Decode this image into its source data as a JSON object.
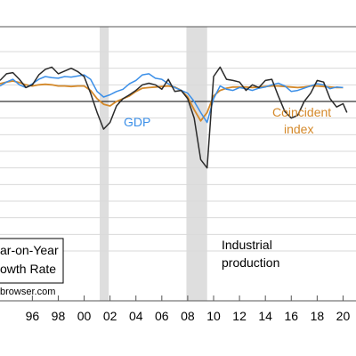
{
  "chart_data": {
    "type": "line",
    "xlim": [
      1993.5,
      2021.0
    ],
    "ylim": [
      -0.36,
      0.135
    ],
    "x_ticks": [
      1996,
      1998,
      2000,
      2002,
      2004,
      2006,
      2008,
      2010,
      2012,
      2014,
      2016,
      2018,
      2020
    ],
    "x_tick_labels": [
      "96",
      "98",
      "00",
      "02",
      "04",
      "06",
      "08",
      "10",
      "12",
      "14",
      "16",
      "18",
      "20"
    ],
    "y_grid_values": [
      0.09,
      0.06,
      0.03,
      0.0,
      -0.03,
      -0.06,
      -0.09,
      -0.12,
      -0.15,
      -0.18,
      -0.21,
      -0.24,
      -0.27
    ],
    "zero_line": 0.0,
    "recessions": [
      [
        2001.2,
        2001.9
      ],
      [
        2007.9,
        2009.5
      ]
    ],
    "series": [
      {
        "name": "GDP",
        "color": "#3b8fe8",
        "x": [
          1993.5,
          1994.0,
          1994.5,
          1995.0,
          1995.5,
          1996.0,
          1996.5,
          1997.0,
          1997.5,
          1998.0,
          1998.5,
          1999.0,
          1999.5,
          2000.0,
          2000.5,
          2001.0,
          2001.5,
          2002.0,
          2002.5,
          2003.0,
          2003.5,
          2004.0,
          2004.5,
          2005.0,
          2005.5,
          2006.0,
          2006.5,
          2007.0,
          2007.5,
          2008.0,
          2008.5,
          2009.0,
          2009.5,
          2010.0,
          2010.5,
          2011.0,
          2011.5,
          2012.0,
          2012.5,
          2013.0,
          2013.5,
          2014.0,
          2014.5,
          2015.0,
          2015.5,
          2016.0,
          2016.5,
          2017.0,
          2017.5,
          2018.0,
          2018.5,
          2019.0,
          2019.5,
          2020.0
        ],
        "values": [
          0.028,
          0.035,
          0.04,
          0.03,
          0.025,
          0.032,
          0.04,
          0.045,
          0.043,
          0.042,
          0.045,
          0.044,
          0.046,
          0.048,
          0.04,
          0.018,
          0.008,
          0.012,
          0.018,
          0.022,
          0.032,
          0.038,
          0.048,
          0.05,
          0.042,
          0.04,
          0.032,
          0.025,
          0.02,
          0.015,
          0.0,
          -0.02,
          -0.038,
          0.005,
          0.028,
          0.022,
          0.02,
          0.025,
          0.023,
          0.02,
          0.024,
          0.026,
          0.03,
          0.033,
          0.028,
          0.018,
          0.02,
          0.024,
          0.028,
          0.032,
          0.03,
          0.023,
          0.026,
          0.025
        ]
      },
      {
        "name": "Coincident index",
        "color": "#d4892a",
        "x": [
          1993.5,
          1994.0,
          1994.5,
          1995.0,
          1995.5,
          1996.0,
          1996.5,
          1997.0,
          1997.5,
          1998.0,
          1998.5,
          1999.0,
          1999.5,
          2000.0,
          2000.5,
          2001.0,
          2001.5,
          2002.0,
          2002.5,
          2003.0,
          2003.5,
          2004.0,
          2004.5,
          2005.0,
          2005.5,
          2006.0,
          2006.5,
          2007.0,
          2007.5,
          2008.0,
          2008.5,
          2009.0,
          2009.5,
          2010.0,
          2010.5,
          2011.0,
          2011.5,
          2012.0,
          2012.5,
          2013.0,
          2013.5,
          2014.0,
          2014.5,
          2015.0,
          2015.5,
          2016.0,
          2016.5,
          2017.0,
          2017.5,
          2018.0,
          2018.5,
          2019.0,
          2019.5,
          2020.0
        ],
        "values": [
          0.032,
          0.035,
          0.037,
          0.034,
          0.03,
          0.028,
          0.03,
          0.031,
          0.03,
          0.028,
          0.028,
          0.027,
          0.028,
          0.028,
          0.02,
          0.005,
          -0.005,
          -0.008,
          0.0,
          0.005,
          0.01,
          0.018,
          0.024,
          0.025,
          0.026,
          0.027,
          0.028,
          0.026,
          0.02,
          0.008,
          -0.015,
          -0.035,
          -0.02,
          0.01,
          0.02,
          0.024,
          0.026,
          0.026,
          0.026,
          0.025,
          0.026,
          0.027,
          0.028,
          0.028,
          0.027,
          0.026,
          0.025,
          0.026,
          0.028,
          0.028,
          0.027,
          0.026,
          0.025,
          0.025
        ]
      },
      {
        "name": "Industrial production",
        "color": "#2a2a2a",
        "x": [
          1993.5,
          1994.0,
          1994.5,
          1995.0,
          1995.5,
          1996.0,
          1996.5,
          1997.0,
          1997.5,
          1998.0,
          1998.5,
          1999.0,
          1999.5,
          2000.0,
          2000.5,
          2001.0,
          2001.5,
          2002.0,
          2002.5,
          2003.0,
          2003.5,
          2004.0,
          2004.5,
          2005.0,
          2005.5,
          2006.0,
          2006.5,
          2007.0,
          2007.5,
          2008.0,
          2008.5,
          2009.0,
          2009.5,
          2010.0,
          2010.5,
          2011.0,
          2011.5,
          2012.0,
          2012.5,
          2013.0,
          2013.5,
          2014.0,
          2014.5,
          2015.0,
          2015.5,
          2016.0,
          2016.5,
          2017.0,
          2017.5,
          2018.0,
          2018.5,
          2019.0,
          2019.5,
          2020.0,
          2020.3
        ],
        "values": [
          0.038,
          0.05,
          0.052,
          0.04,
          0.025,
          0.03,
          0.048,
          0.058,
          0.062,
          0.05,
          0.055,
          0.06,
          0.054,
          0.045,
          0.015,
          -0.02,
          -0.05,
          -0.038,
          -0.008,
          0.005,
          0.012,
          0.02,
          0.03,
          0.033,
          0.03,
          0.022,
          0.04,
          0.018,
          0.02,
          0.005,
          -0.03,
          -0.105,
          -0.12,
          0.045,
          0.062,
          0.04,
          0.038,
          0.035,
          0.02,
          0.03,
          0.025,
          0.038,
          0.04,
          0.01,
          -0.018,
          -0.03,
          -0.025,
          0.0,
          0.015,
          0.038,
          0.035,
          0.005,
          -0.01,
          -0.004,
          -0.02
        ]
      }
    ],
    "annotations": {
      "gdp": "GDP",
      "coincident_line1": "Coincident",
      "coincident_line2": "index",
      "ip_line1": "Industrial",
      "ip_line2": "production",
      "box_line1": "ar-on-Year",
      "box_line2": "owth Rate",
      "source": "browser.com"
    }
  }
}
